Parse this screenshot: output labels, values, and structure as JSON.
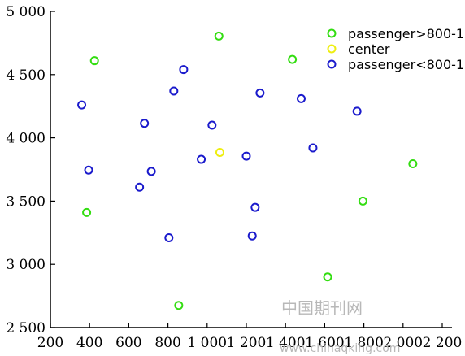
{
  "chart_data": {
    "type": "scatter",
    "title": "",
    "xlabel": "",
    "ylabel": "",
    "xlim": [
      200,
      2200
    ],
    "ylim": [
      2500,
      5000
    ],
    "grid": false,
    "legend_position": "top-right",
    "x_ticks": [
      {
        "value": 200,
        "label": "200"
      },
      {
        "value": 400,
        "label": "400"
      },
      {
        "value": 600,
        "label": "600"
      },
      {
        "value": 800,
        "label": "800"
      },
      {
        "value": 1000,
        "label": "1 000"
      },
      {
        "value": 1200,
        "label": "1 200"
      },
      {
        "value": 1400,
        "label": "1 400"
      },
      {
        "value": 1600,
        "label": "1 600"
      },
      {
        "value": 1800,
        "label": "1 800"
      },
      {
        "value": 2000,
        "label": "2 000"
      },
      {
        "value": 2200,
        "label": "2 200"
      }
    ],
    "y_ticks": [
      {
        "value": 2500,
        "label": "2 500"
      },
      {
        "value": 3000,
        "label": "3 000"
      },
      {
        "value": 3500,
        "label": "3 500"
      },
      {
        "value": 4000,
        "label": "4 000"
      },
      {
        "value": 4500,
        "label": "4 500"
      },
      {
        "value": 5000,
        "label": "5 000"
      }
    ],
    "series": [
      {
        "name": "passenger>800-1",
        "color": "#33dd11",
        "points": [
          {
            "x": 1060,
            "y": 4805
          },
          {
            "x": 425,
            "y": 4610
          },
          {
            "x": 1435,
            "y": 4620
          },
          {
            "x": 2050,
            "y": 3795
          },
          {
            "x": 1795,
            "y": 3500
          },
          {
            "x": 385,
            "y": 3410
          },
          {
            "x": 1615,
            "y": 2900
          },
          {
            "x": 855,
            "y": 2675
          }
        ]
      },
      {
        "name": "center",
        "color": "#eeee11",
        "points": [
          {
            "x": 1065,
            "y": 3885
          }
        ]
      },
      {
        "name": "passenger<800-1",
        "color": "#1a1acc",
        "points": [
          {
            "x": 880,
            "y": 4540
          },
          {
            "x": 830,
            "y": 4370
          },
          {
            "x": 360,
            "y": 4260
          },
          {
            "x": 1270,
            "y": 4355
          },
          {
            "x": 1480,
            "y": 4310
          },
          {
            "x": 1765,
            "y": 4210
          },
          {
            "x": 680,
            "y": 4115
          },
          {
            "x": 1025,
            "y": 4100
          },
          {
            "x": 1540,
            "y": 3920
          },
          {
            "x": 1200,
            "y": 3855
          },
          {
            "x": 970,
            "y": 3830
          },
          {
            "x": 395,
            "y": 3745
          },
          {
            "x": 715,
            "y": 3735
          },
          {
            "x": 655,
            "y": 3610
          },
          {
            "x": 1245,
            "y": 3450
          },
          {
            "x": 805,
            "y": 3210
          },
          {
            "x": 1230,
            "y": 3225
          }
        ]
      }
    ]
  },
  "watermark": {
    "text": "中国期刊网",
    "url": "www.chinaqking.com"
  }
}
